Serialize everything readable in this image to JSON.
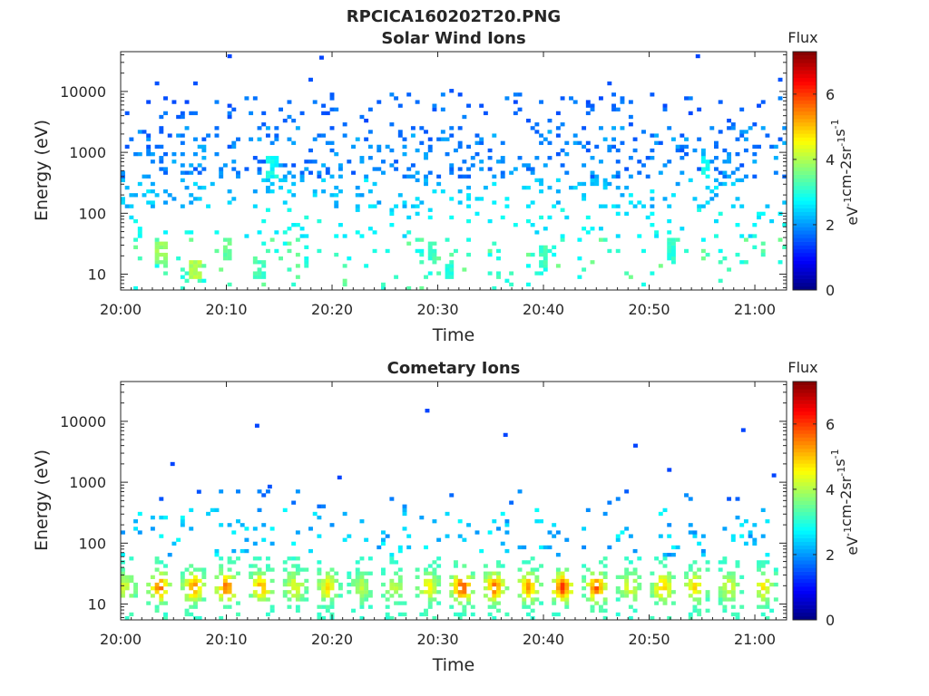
{
  "figure_title": "RPCICA160202T20.PNG",
  "colorbar_scale": [
    "#00007f",
    "#0000ff",
    "#007fff",
    "#00ffff",
    "#7fff7f",
    "#ffff00",
    "#ff7f00",
    "#ff0000",
    "#7f0000"
  ],
  "chart_data": [
    {
      "type": "heatmap",
      "title": "Solar Wind Ions",
      "xlabel": "Time",
      "ylabel": "Energy (eV)",
      "x_ticks": [
        "20:00",
        "20:10",
        "20:20",
        "20:30",
        "20:40",
        "20:50",
        "21:00"
      ],
      "x_range_min": [
        0,
        63
      ],
      "y_scale": "log",
      "y_range": [
        5.5,
        45000
      ],
      "y_ticks": [
        10,
        100,
        1000,
        10000
      ],
      "y_tick_labels": [
        "10",
        "100",
        "1000",
        "10000"
      ],
      "colorbar": {
        "title": "Flux",
        "label": "eV-1cm-2sr-1s-1",
        "range": [
          0,
          7.3
        ],
        "ticks": [
          "0",
          "2",
          "4",
          "6"
        ]
      },
      "hotspots": [
        {
          "t": 3.8,
          "E": 22,
          "v": 4.0
        },
        {
          "t": 7.0,
          "E": 12,
          "v": 4.2
        },
        {
          "t": 10.0,
          "E": 25,
          "v": 3.6
        },
        {
          "t": 13.2,
          "E": 12,
          "v": 3.4
        },
        {
          "t": 14.3,
          "E": 600,
          "v": 3.0
        },
        {
          "t": 29.5,
          "E": 22,
          "v": 3.4
        },
        {
          "t": 31.2,
          "E": 12,
          "v": 3.2
        },
        {
          "t": 40.0,
          "E": 20,
          "v": 3.4
        },
        {
          "t": 52.0,
          "E": 25,
          "v": 3.2
        },
        {
          "t": 55.4,
          "E": 600,
          "v": 3.0
        }
      ],
      "outliers": [
        {
          "t": 10.3,
          "E": 38000,
          "v": 1.4
        },
        {
          "t": 19.0,
          "E": 36000,
          "v": 1.4
        },
        {
          "t": 54.6,
          "E": 38000,
          "v": 1.4
        }
      ]
    },
    {
      "type": "heatmap",
      "title": "Cometary Ions",
      "xlabel": "Time",
      "ylabel": "Energy (eV)",
      "x_ticks": [
        "20:00",
        "20:10",
        "20:20",
        "20:30",
        "20:40",
        "20:50",
        "21:00"
      ],
      "x_range_min": [
        0,
        63
      ],
      "y_scale": "log",
      "y_range": [
        5.5,
        45000
      ],
      "y_ticks": [
        10,
        100,
        1000,
        10000
      ],
      "y_tick_labels": [
        "10",
        "100",
        "1000",
        "10000"
      ],
      "colorbar": {
        "title": "Flux",
        "label": "eV-1cm-2sr-1s-1",
        "range": [
          0,
          7.3
        ],
        "ticks": [
          "0",
          "2",
          "4",
          "6"
        ]
      },
      "bursts_center_min": [
        0.4,
        3.7,
        6.9,
        10.0,
        13.3,
        16.5,
        19.6,
        22.8,
        25.9,
        29.1,
        32.3,
        35.4,
        38.6,
        41.8,
        45.0,
        48.2,
        51.3,
        54.4,
        57.6,
        60.8
      ],
      "burst_peak_flux": [
        4.2,
        5.6,
        5.4,
        5.6,
        5.2,
        4.4,
        4.6,
        4.0,
        4.0,
        4.6,
        6.0,
        5.6,
        5.2,
        5.9,
        5.7,
        4.4,
        5.0,
        4.8,
        4.2,
        4.6
      ],
      "outliers": [
        {
          "t": 29.0,
          "E": 15000,
          "v": 1.4
        },
        {
          "t": 12.9,
          "E": 8500,
          "v": 1.4
        },
        {
          "t": 58.9,
          "E": 7200,
          "v": 1.4
        },
        {
          "t": 36.4,
          "E": 6000,
          "v": 1.4
        },
        {
          "t": 48.7,
          "E": 4000,
          "v": 1.4
        },
        {
          "t": 4.9,
          "E": 2000,
          "v": 1.4
        },
        {
          "t": 51.9,
          "E": 1600,
          "v": 1.4
        },
        {
          "t": 20.7,
          "E": 1200,
          "v": 1.4
        },
        {
          "t": 61.8,
          "E": 1300,
          "v": 1.4
        },
        {
          "t": 7.4,
          "E": 700,
          "v": 1.5
        },
        {
          "t": 14.1,
          "E": 850,
          "v": 1.5
        }
      ]
    }
  ]
}
